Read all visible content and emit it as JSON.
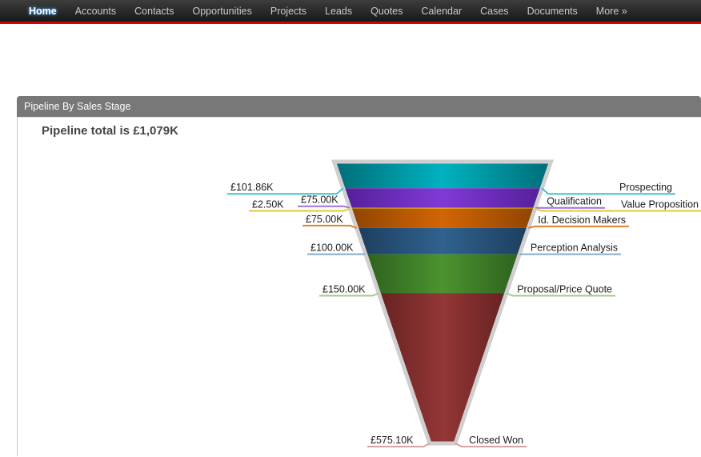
{
  "nav": {
    "items": [
      "Home",
      "Accounts",
      "Contacts",
      "Opportunities",
      "Projects",
      "Leads",
      "Quotes",
      "Calendar",
      "Cases",
      "Documents",
      "More »"
    ],
    "active_item": "Home"
  },
  "panel": {
    "header": "Pipeline By Sales Stage"
  },
  "chart_data": {
    "type": "funnel",
    "title": "Pipeline total is £1,079K",
    "total_value_k": 1079,
    "currency": "£",
    "legend_position": "both-sides",
    "stages": [
      {
        "label": "Prospecting",
        "value_label": "£101.86K",
        "value": 101.86,
        "color": "#00939f",
        "color_light": "#00b2c0",
        "color_dark": "#006d77",
        "line_color": "#3cc4d1"
      },
      {
        "label": "Qualification",
        "value_label": "£75.00K",
        "value": 75.0,
        "color": "#7531c4",
        "color_light": "#8139d6",
        "color_dark": "#54209a",
        "line_color": "#9d74d8"
      },
      {
        "label": "Value Proposition",
        "value_label": "£2.50K",
        "value": 2.5,
        "color": "#eec929",
        "color_light": "#f2d13a",
        "color_dark": "#d8b417",
        "line_color": "#e9c730"
      },
      {
        "label": "Id. Decision Makers",
        "value_label": "£75.00K",
        "value": 75.0,
        "color": "#c05a03",
        "color_light": "#d26504",
        "color_dark": "#8f4403",
        "line_color": "#e08030"
      },
      {
        "label": "Perception Analysis",
        "value_label": "£100.00K",
        "value": 100.0,
        "color": "#2a5480",
        "color_light": "#30628f",
        "color_dark": "#1d3e5e",
        "line_color": "#85aacc"
      },
      {
        "label": "Proposal/Price Quote",
        "value_label": "£150.00K",
        "value": 150.0,
        "color": "#417f2a",
        "color_light": "#4b932f",
        "color_dark": "#2e611e",
        "line_color": "#a3c98f"
      },
      {
        "label": "Closed Won",
        "value_label": "£575.10K",
        "value": 575.1,
        "color": "#813030",
        "color_light": "#943636",
        "color_dark": "#662222",
        "line_color": "#d9a1a1"
      }
    ],
    "outline_color": "#cfcfcf"
  }
}
